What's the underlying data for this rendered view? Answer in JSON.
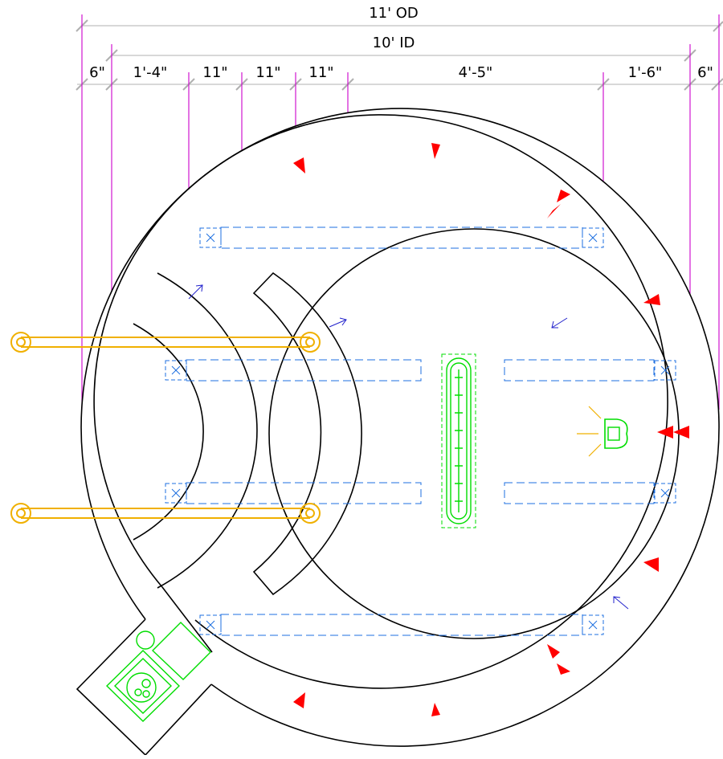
{
  "dimensions": {
    "overall_label": "11' OD",
    "inner_label": "10' ID",
    "segments": [
      "6\"",
      "1'-4\"",
      "11\"",
      "11\"",
      "11\"",
      "4'-5\"",
      "1'-6\"",
      "6\""
    ]
  },
  "colors": {
    "wall": "#000000",
    "dimension_line": "#c0c0c0",
    "extension_line": "#cc00cc",
    "ductwork": "#1e6fe0",
    "plumbing": "#f0b000",
    "fixtures": "#00dd00",
    "markers": "#ff0000",
    "flow_arrows": "#2222cc"
  }
}
